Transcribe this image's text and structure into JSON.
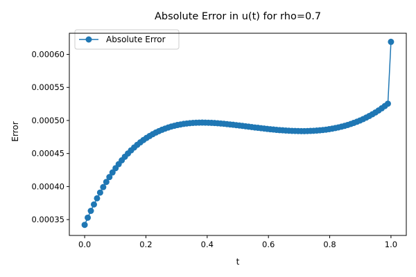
{
  "chart_data": {
    "type": "line",
    "title": "Absolute Error in u(t) for rho=0.7",
    "xlabel": "t",
    "ylabel": "Error",
    "xlim": [
      -0.05,
      1.05
    ],
    "ylim": [
      0.000326,
      0.000632
    ],
    "x_ticks": [
      0.0,
      0.2,
      0.4,
      0.6,
      0.8,
      1.0
    ],
    "x_tick_labels": [
      "0.0",
      "0.2",
      "0.4",
      "0.6",
      "0.8",
      "1.0"
    ],
    "y_ticks": [
      0.00035,
      0.0004,
      0.00045,
      0.0005,
      0.00055,
      0.0006
    ],
    "y_tick_labels": [
      "0.00035",
      "0.00040",
      "0.00045",
      "0.00050",
      "0.00055",
      "0.00060"
    ],
    "grid": false,
    "legend": {
      "position": "upper-left",
      "entries": [
        "Absolute Error"
      ]
    },
    "series": [
      {
        "name": "Absolute Error",
        "color": "#1f77b4",
        "marker": "circle",
        "x": [
          0.0,
          0.0101,
          0.0202,
          0.0303,
          0.0404,
          0.0505,
          0.0606,
          0.0707,
          0.0808,
          0.0909,
          0.101,
          0.1111,
          0.1212,
          0.1313,
          0.1414,
          0.1515,
          0.1616,
          0.1717,
          0.1818,
          0.1919,
          0.202,
          0.2121,
          0.2222,
          0.2323,
          0.2424,
          0.2525,
          0.2626,
          0.2727,
          0.2828,
          0.2929,
          0.303,
          0.3131,
          0.3232,
          0.3333,
          0.3434,
          0.3535,
          0.3636,
          0.3737,
          0.3838,
          0.3939,
          0.404,
          0.4141,
          0.4242,
          0.4343,
          0.4444,
          0.4545,
          0.4646,
          0.4747,
          0.4848,
          0.4949,
          0.5051,
          0.5152,
          0.5253,
          0.5354,
          0.5455,
          0.5556,
          0.5657,
          0.5758,
          0.5859,
          0.596,
          0.6061,
          0.6162,
          0.6263,
          0.6364,
          0.6465,
          0.6566,
          0.6667,
          0.6768,
          0.6869,
          0.697,
          0.7071,
          0.7172,
          0.7273,
          0.7374,
          0.7475,
          0.7576,
          0.7677,
          0.7778,
          0.7879,
          0.798,
          0.8081,
          0.8182,
          0.8283,
          0.8384,
          0.8485,
          0.8586,
          0.8687,
          0.8788,
          0.8889,
          0.899,
          0.9091,
          0.9192,
          0.9293,
          0.9394,
          0.9495,
          0.9596,
          0.9697,
          0.9798,
          0.9899,
          1.0
        ],
        "y": [
          0.000342,
          0.0003529,
          0.0003632,
          0.0003729,
          0.0003822,
          0.0003909,
          0.0003992,
          0.000407,
          0.0004144,
          0.0004213,
          0.0004278,
          0.0004339,
          0.0004397,
          0.0004451,
          0.0004501,
          0.0004548,
          0.0004591,
          0.0004632,
          0.0004669,
          0.0004704,
          0.0004736,
          0.0004765,
          0.0004792,
          0.0004817,
          0.0004839,
          0.0004859,
          0.0004877,
          0.0004893,
          0.0004908,
          0.000492,
          0.0004931,
          0.000494,
          0.0004948,
          0.0004954,
          0.0004959,
          0.0004963,
          0.0004966,
          0.0004967,
          0.0004968,
          0.0004967,
          0.0004966,
          0.0004964,
          0.0004961,
          0.0004958,
          0.0004954,
          0.000495,
          0.0004945,
          0.000494,
          0.0004935,
          0.0004929,
          0.0004924,
          0.0004918,
          0.0004912,
          0.0004906,
          0.00049,
          0.0004894,
          0.0004889,
          0.0004883,
          0.0004878,
          0.0004872,
          0.0004867,
          0.0004863,
          0.0004858,
          0.0004854,
          0.0004851,
          0.0004848,
          0.0004845,
          0.0004843,
          0.0004841,
          0.000484,
          0.0004839,
          0.0004839,
          0.000484,
          0.0004842,
          0.0004844,
          0.0004847,
          0.0004851,
          0.0004856,
          0.0004861,
          0.0004868,
          0.0004876,
          0.0004885,
          0.0004895,
          0.0004906,
          0.0004918,
          0.0004932,
          0.0004947,
          0.0004963,
          0.0004981,
          0.0005,
          0.0005021,
          0.0005044,
          0.0005068,
          0.0005094,
          0.0005122,
          0.0005152,
          0.0005184,
          0.0005218,
          0.0005254,
          0.000619
        ]
      }
    ]
  }
}
